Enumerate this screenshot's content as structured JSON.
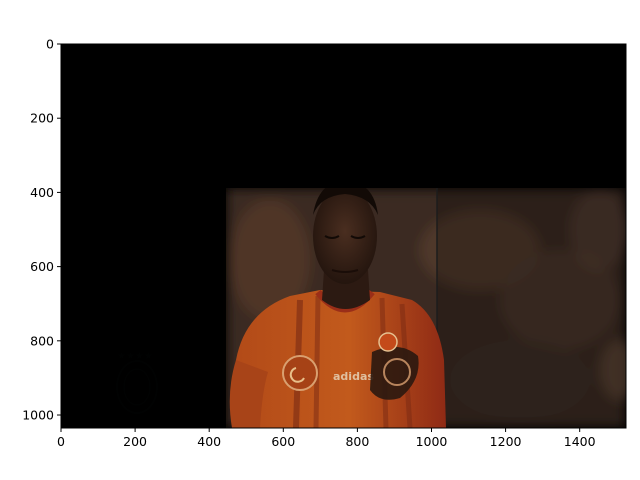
{
  "figure": {
    "kind": "image-plot",
    "image_description_icon": "photo-icon"
  },
  "axes": {
    "x_ticks": [
      {
        "value": 0,
        "label": "0"
      },
      {
        "value": 200,
        "label": "200"
      },
      {
        "value": 400,
        "label": "400"
      },
      {
        "value": 600,
        "label": "600"
      },
      {
        "value": 800,
        "label": "800"
      },
      {
        "value": 1000,
        "label": "1000"
      },
      {
        "value": 1200,
        "label": "1200"
      },
      {
        "value": 1400,
        "label": "1400"
      }
    ],
    "y_ticks": [
      {
        "value": 0,
        "label": "0"
      },
      {
        "value": 200,
        "label": "200"
      },
      {
        "value": 400,
        "label": "400"
      },
      {
        "value": 600,
        "label": "600"
      },
      {
        "value": 800,
        "label": "800"
      },
      {
        "value": 1000,
        "label": "1000"
      }
    ],
    "x_range": [
      0,
      1525
    ],
    "y_range": [
      1035,
      0
    ]
  },
  "colors": {
    "background": "#000000",
    "jersey_orange": "#b9541b",
    "jersey_red": "#8e2317",
    "skin": "#3a2418",
    "crowd": "#4a3628"
  }
}
